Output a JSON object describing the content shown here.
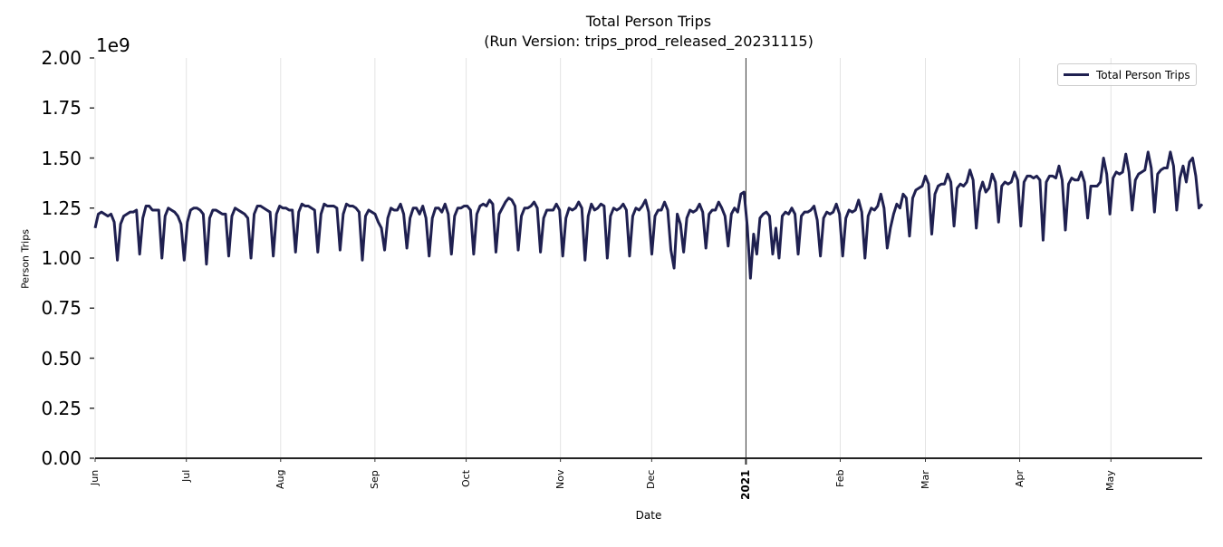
{
  "chart": {
    "title_line1": "Total Person Trips",
    "title_line2": "(Run Version: trips_prod_released_20231115)",
    "xlabel": "Date",
    "ylabel": "Person Trips",
    "y_offset_label": "1e9",
    "legend_label": "Total Person Trips",
    "line_color": "#1f2050",
    "y_ticks": [
      "0.00",
      "0.25",
      "0.50",
      "0.75",
      "1.00",
      "1.25",
      "1.50",
      "1.75",
      "2.00"
    ],
    "x_ticks": [
      {
        "label": "Jun",
        "day": 0,
        "bold": false
      },
      {
        "label": "Jul",
        "day": 30,
        "bold": false
      },
      {
        "label": "Aug",
        "day": 61,
        "bold": false
      },
      {
        "label": "Sep",
        "day": 92,
        "bold": false
      },
      {
        "label": "Oct",
        "day": 122,
        "bold": false
      },
      {
        "label": "Nov",
        "day": 153,
        "bold": false
      },
      {
        "label": "Dec",
        "day": 183,
        "bold": false
      },
      {
        "label": "2021",
        "day": 214,
        "bold": true
      },
      {
        "label": "Feb",
        "day": 245,
        "bold": false
      },
      {
        "label": "Mar",
        "day": 273,
        "bold": false
      },
      {
        "label": "Apr",
        "day": 304,
        "bold": false
      },
      {
        "label": "May",
        "day": 334,
        "bold": false
      }
    ]
  },
  "chart_data": {
    "type": "line",
    "title": "Total Person Trips (Run Version: trips_prod_released_20231115)",
    "xlabel": "Date",
    "ylabel": "Person Trips",
    "y_scale": "1e9",
    "ylim": [
      0,
      2.0
    ],
    "x_start": "2020-06-01",
    "x_end": "2021-05-31",
    "x_tick_labels": [
      "Jun",
      "Jul",
      "Aug",
      "Sep",
      "Oct",
      "Nov",
      "Dec",
      "2021",
      "Feb",
      "Mar",
      "Apr",
      "May"
    ],
    "grid": "vertical at month ticks",
    "legend_position": "upper right",
    "series": [
      {
        "name": "Total Person Trips",
        "unit_note": "values in units of 1e9, daily",
        "values": [
          1.15,
          1.22,
          1.23,
          1.22,
          1.21,
          1.22,
          1.18,
          0.99,
          1.17,
          1.21,
          1.22,
          1.23,
          1.23,
          1.24,
          1.02,
          1.2,
          1.26,
          1.26,
          1.24,
          1.24,
          1.24,
          1.0,
          1.21,
          1.25,
          1.24,
          1.23,
          1.21,
          1.17,
          0.99,
          1.18,
          1.24,
          1.25,
          1.25,
          1.24,
          1.22,
          0.97,
          1.2,
          1.24,
          1.24,
          1.23,
          1.22,
          1.22,
          1.01,
          1.21,
          1.25,
          1.24,
          1.23,
          1.22,
          1.2,
          1.0,
          1.22,
          1.26,
          1.26,
          1.25,
          1.24,
          1.23,
          1.01,
          1.22,
          1.26,
          1.25,
          1.25,
          1.24,
          1.24,
          1.03,
          1.23,
          1.27,
          1.26,
          1.26,
          1.25,
          1.24,
          1.03,
          1.22,
          1.27,
          1.26,
          1.26,
          1.26,
          1.25,
          1.04,
          1.22,
          1.27,
          1.26,
          1.26,
          1.25,
          1.23,
          0.99,
          1.21,
          1.24,
          1.23,
          1.22,
          1.18,
          1.15,
          1.04,
          1.2,
          1.25,
          1.24,
          1.24,
          1.27,
          1.22,
          1.05,
          1.2,
          1.25,
          1.25,
          1.22,
          1.26,
          1.2,
          1.01,
          1.2,
          1.25,
          1.25,
          1.23,
          1.27,
          1.22,
          1.02,
          1.21,
          1.25,
          1.25,
          1.26,
          1.26,
          1.24,
          1.02,
          1.22,
          1.26,
          1.27,
          1.26,
          1.29,
          1.27,
          1.03,
          1.22,
          1.25,
          1.28,
          1.3,
          1.29,
          1.26,
          1.04,
          1.21,
          1.25,
          1.25,
          1.26,
          1.28,
          1.25,
          1.03,
          1.2,
          1.24,
          1.24,
          1.24,
          1.27,
          1.24,
          1.01,
          1.2,
          1.25,
          1.24,
          1.25,
          1.28,
          1.25,
          0.99,
          1.21,
          1.27,
          1.24,
          1.25,
          1.27,
          1.26,
          1.0,
          1.21,
          1.25,
          1.24,
          1.25,
          1.27,
          1.24,
          1.01,
          1.21,
          1.25,
          1.24,
          1.26,
          1.29,
          1.23,
          1.02,
          1.21,
          1.24,
          1.24,
          1.28,
          1.24,
          1.04,
          0.95,
          1.22,
          1.17,
          1.03,
          1.2,
          1.24,
          1.23,
          1.24,
          1.27,
          1.23,
          1.05,
          1.22,
          1.24,
          1.24,
          1.28,
          1.25,
          1.21,
          1.06,
          1.22,
          1.25,
          1.23,
          1.32,
          1.33,
          1.16,
          0.9,
          1.12,
          1.02,
          1.2,
          1.22,
          1.23,
          1.21,
          1.02,
          1.15,
          1.0,
          1.21,
          1.23,
          1.22,
          1.25,
          1.22,
          1.02,
          1.21,
          1.23,
          1.23,
          1.24,
          1.26,
          1.19,
          1.01,
          1.2,
          1.23,
          1.22,
          1.23,
          1.27,
          1.22,
          1.01,
          1.2,
          1.24,
          1.23,
          1.24,
          1.29,
          1.23,
          1.0,
          1.21,
          1.25,
          1.24,
          1.26,
          1.32,
          1.25,
          1.05,
          1.15,
          1.22,
          1.27,
          1.25,
          1.32,
          1.3,
          1.11,
          1.3,
          1.34,
          1.35,
          1.36,
          1.41,
          1.37,
          1.12,
          1.32,
          1.36,
          1.37,
          1.37,
          1.42,
          1.38,
          1.16,
          1.35,
          1.37,
          1.36,
          1.38,
          1.44,
          1.39,
          1.15,
          1.33,
          1.38,
          1.33,
          1.35,
          1.42,
          1.38,
          1.18,
          1.36,
          1.38,
          1.37,
          1.38,
          1.43,
          1.39,
          1.16,
          1.38,
          1.41,
          1.41,
          1.4,
          1.41,
          1.39,
          1.09,
          1.38,
          1.41,
          1.41,
          1.4,
          1.46,
          1.39,
          1.14,
          1.37,
          1.4,
          1.39,
          1.39,
          1.43,
          1.38,
          1.2,
          1.36,
          1.36,
          1.36,
          1.38,
          1.5,
          1.42,
          1.22,
          1.4,
          1.43,
          1.42,
          1.43,
          1.52,
          1.43,
          1.24,
          1.39,
          1.42,
          1.43,
          1.44,
          1.53,
          1.45,
          1.23,
          1.42,
          1.44,
          1.45,
          1.45,
          1.53,
          1.46,
          1.24,
          1.4,
          1.46,
          1.38,
          1.48,
          1.5,
          1.41,
          1.25,
          1.27
        ]
      }
    ]
  }
}
